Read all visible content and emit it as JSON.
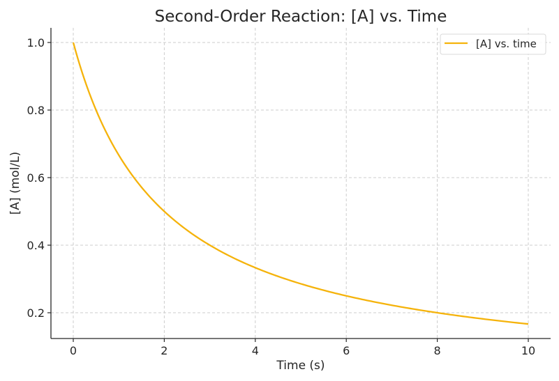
{
  "chart_data": {
    "type": "line",
    "title": "Second-Order Reaction: [A] vs. Time",
    "xlabel": "Time (s)",
    "ylabel": "[A] (mol/L)",
    "xlim": [
      -0.5,
      10.5
    ],
    "ylim": [
      0.125,
      1.045
    ],
    "x_ticks": [
      0,
      2,
      4,
      6,
      8,
      10
    ],
    "x_tick_labels": [
      "0",
      "2",
      "4",
      "6",
      "8",
      "10"
    ],
    "y_ticks": [
      0.2,
      0.4,
      0.6,
      0.8,
      1.0
    ],
    "y_tick_labels": [
      "0.2",
      "0.4",
      "0.6",
      "0.8",
      "1.0"
    ],
    "grid": true,
    "legend_position": "upper right",
    "series": [
      {
        "name": "[A] vs. time",
        "color": "#F5B30B",
        "formula": "[A] = 1 / (1 + 0.5 t)",
        "x": [
          0,
          0.5,
          1,
          1.5,
          2,
          2.5,
          3,
          3.5,
          4,
          4.5,
          5,
          5.5,
          6,
          6.5,
          7,
          7.5,
          8,
          8.5,
          9,
          9.5,
          10
        ],
        "values": [
          1.0,
          0.8,
          0.667,
          0.571,
          0.5,
          0.444,
          0.4,
          0.364,
          0.333,
          0.308,
          0.286,
          0.267,
          0.25,
          0.235,
          0.222,
          0.211,
          0.2,
          0.19,
          0.182,
          0.174,
          0.167
        ]
      }
    ]
  },
  "colors": {
    "line": "#F5B30B",
    "grid": "#CCCCCC",
    "axis": "#262626",
    "text": "#262626"
  }
}
